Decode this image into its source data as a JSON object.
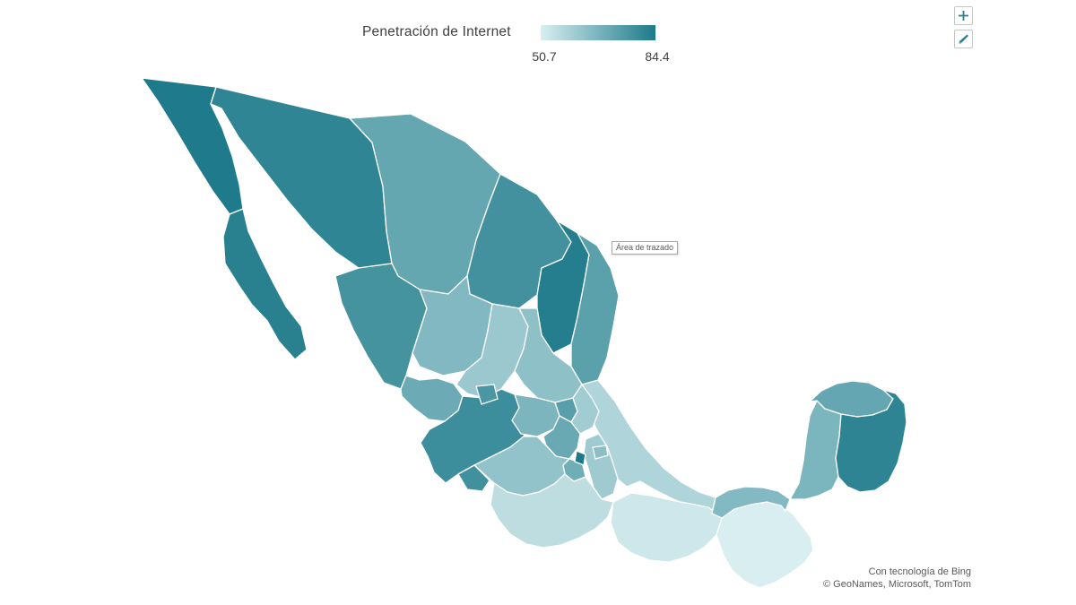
{
  "title": "Penetración de Internet",
  "legend": {
    "min_label": "50.7",
    "max_label": "84.4",
    "min_color": "#d8eef0",
    "max_color": "#1d7a8a"
  },
  "tooltip": {
    "text": "Área de trazado"
  },
  "attribution": {
    "line1": "Con tecnología de Bing",
    "line2": "© GeoNames, Microsoft, TomTom"
  },
  "side_buttons": [
    {
      "icon": "chart-elements-plus-icon"
    },
    {
      "icon": "chart-styles-brush-icon"
    }
  ],
  "chart_data": {
    "type": "choropleth",
    "geography": "Mexico (states)",
    "title": "Penetración de Internet",
    "legend_min": 50.7,
    "legend_max": 84.4,
    "legend_position": "top",
    "basemap_attribution": [
      "Con tecnología de Bing",
      "© GeoNames, Microsoft, TomTom"
    ],
    "regions": [
      {
        "id": "ver",
        "name": "Veracruz",
        "value": 58.0
      },
      {
        "id": "bc",
        "name": "Baja California",
        "value": 84.0
      },
      {
        "id": "bcs",
        "name": "Baja California Sur",
        "value": 82.3
      },
      {
        "id": "son",
        "name": "Sonora",
        "value": 81.2
      },
      {
        "id": "chih",
        "name": "Chihuahua",
        "value": 71.4
      },
      {
        "id": "coah",
        "name": "Coahuila",
        "value": 77.6
      },
      {
        "id": "nl",
        "name": "Nuevo León",
        "value": 83.1
      },
      {
        "id": "tamps",
        "name": "Tamaulipas",
        "value": 73.2
      },
      {
        "id": "sin",
        "name": "Sinaloa",
        "value": 77.0
      },
      {
        "id": "dgo",
        "name": "Durango",
        "value": 66.3
      },
      {
        "id": "zac",
        "name": "Zacatecas",
        "value": 61.8
      },
      {
        "id": "slp",
        "name": "San Luis Potosí",
        "value": 64.1
      },
      {
        "id": "nay",
        "name": "Nayarit",
        "value": 70.2
      },
      {
        "id": "jal",
        "name": "Jalisco",
        "value": 78.6
      },
      {
        "id": "gto",
        "name": "Guanajuato",
        "value": 67.2
      },
      {
        "id": "qro",
        "name": "Querétaro",
        "value": 73.6
      },
      {
        "id": "hgo",
        "name": "Hidalgo",
        "value": 60.6
      },
      {
        "id": "mex",
        "name": "Estado de México",
        "value": 70.7
      },
      {
        "id": "pue",
        "name": "Puebla",
        "value": 61.2
      },
      {
        "id": "mich",
        "name": "Michoacán",
        "value": 63.4
      },
      {
        "id": "col",
        "name": "Colima",
        "value": 78.0
      },
      {
        "id": "gro",
        "name": "Guerrero",
        "value": 55.6
      },
      {
        "id": "oax",
        "name": "Oaxaca",
        "value": 52.6
      },
      {
        "id": "chis",
        "name": "Chiapas",
        "value": 50.7
      },
      {
        "id": "tab",
        "name": "Tabasco",
        "value": 66.0
      },
      {
        "id": "camp",
        "name": "Campeche",
        "value": 67.4
      },
      {
        "id": "yuc",
        "name": "Yucatán",
        "value": 71.6
      },
      {
        "id": "qroo",
        "name": "Quintana Roo",
        "value": 81.4
      },
      {
        "id": "ags",
        "name": "Aguascalientes",
        "value": 76.2
      },
      {
        "id": "tlax",
        "name": "Tlaxcala",
        "value": 64.6
      },
      {
        "id": "mor",
        "name": "Morelos",
        "value": 69.4
      },
      {
        "id": "cdmx",
        "name": "Ciudad de México",
        "value": 84.4
      }
    ]
  }
}
